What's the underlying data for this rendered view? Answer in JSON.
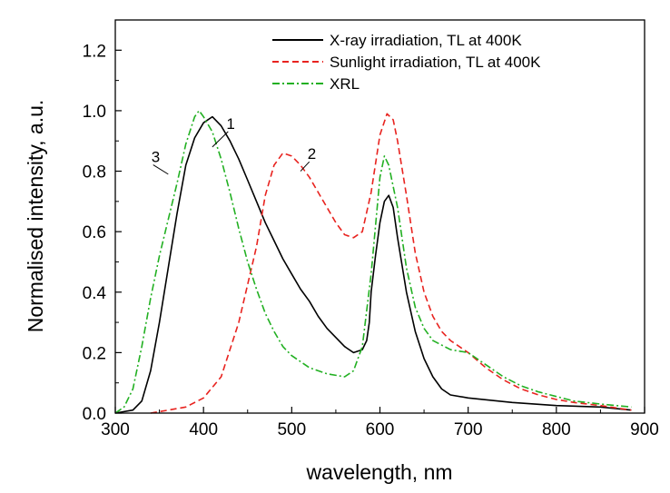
{
  "chart_data": {
    "type": "line",
    "title": "",
    "xlabel": "wavelength, nm",
    "ylabel": "Normalised intensity, a.u.",
    "xlim": [
      300,
      900
    ],
    "ylim": [
      0,
      1.3
    ],
    "x_ticks": [
      300,
      400,
      500,
      600,
      700,
      800,
      900
    ],
    "y_ticks": [
      0.0,
      0.2,
      0.4,
      0.6,
      0.8,
      1.0,
      1.2
    ],
    "x_tick_labels": [
      "300",
      "400",
      "500",
      "600",
      "700",
      "800",
      "900"
    ],
    "y_tick_labels": [
      "0.0",
      "0.2",
      "0.4",
      "0.6",
      "0.8",
      "1.0",
      "1.2"
    ],
    "grid": false,
    "legend_position": "top-right",
    "series": [
      {
        "name": "X-ray irradiation, TL at 400K",
        "color": "#000000",
        "style": "solid",
        "points": [
          [
            300,
            0.0
          ],
          [
            320,
            0.01
          ],
          [
            330,
            0.04
          ],
          [
            340,
            0.14
          ],
          [
            350,
            0.3
          ],
          [
            360,
            0.48
          ],
          [
            370,
            0.66
          ],
          [
            380,
            0.82
          ],
          [
            390,
            0.91
          ],
          [
            400,
            0.96
          ],
          [
            410,
            0.98
          ],
          [
            420,
            0.95
          ],
          [
            430,
            0.9
          ],
          [
            440,
            0.84
          ],
          [
            450,
            0.77
          ],
          [
            460,
            0.7
          ],
          [
            470,
            0.63
          ],
          [
            480,
            0.57
          ],
          [
            490,
            0.51
          ],
          [
            500,
            0.46
          ],
          [
            510,
            0.41
          ],
          [
            520,
            0.37
          ],
          [
            530,
            0.32
          ],
          [
            540,
            0.28
          ],
          [
            550,
            0.25
          ],
          [
            560,
            0.22
          ],
          [
            570,
            0.2
          ],
          [
            580,
            0.21
          ],
          [
            585,
            0.24
          ],
          [
            588,
            0.3
          ],
          [
            590,
            0.4
          ],
          [
            595,
            0.52
          ],
          [
            600,
            0.63
          ],
          [
            605,
            0.7
          ],
          [
            610,
            0.72
          ],
          [
            615,
            0.68
          ],
          [
            620,
            0.58
          ],
          [
            630,
            0.4
          ],
          [
            640,
            0.27
          ],
          [
            650,
            0.18
          ],
          [
            660,
            0.12
          ],
          [
            670,
            0.08
          ],
          [
            680,
            0.06
          ],
          [
            700,
            0.05
          ],
          [
            750,
            0.035
          ],
          [
            800,
            0.025
          ],
          [
            850,
            0.02
          ],
          [
            885,
            0.01
          ]
        ]
      },
      {
        "name": "Sunlight irradiation, TL at 400K",
        "color": "#e8231f",
        "style": "dashed",
        "points": [
          [
            340,
            0.0
          ],
          [
            360,
            0.01
          ],
          [
            380,
            0.02
          ],
          [
            400,
            0.05
          ],
          [
            420,
            0.12
          ],
          [
            440,
            0.3
          ],
          [
            460,
            0.55
          ],
          [
            470,
            0.72
          ],
          [
            480,
            0.82
          ],
          [
            490,
            0.86
          ],
          [
            500,
            0.85
          ],
          [
            510,
            0.82
          ],
          [
            520,
            0.78
          ],
          [
            530,
            0.73
          ],
          [
            540,
            0.68
          ],
          [
            550,
            0.63
          ],
          [
            560,
            0.59
          ],
          [
            570,
            0.58
          ],
          [
            580,
            0.6
          ],
          [
            590,
            0.73
          ],
          [
            600,
            0.92
          ],
          [
            608,
            0.99
          ],
          [
            615,
            0.97
          ],
          [
            620,
            0.9
          ],
          [
            630,
            0.72
          ],
          [
            640,
            0.53
          ],
          [
            650,
            0.4
          ],
          [
            660,
            0.32
          ],
          [
            670,
            0.27
          ],
          [
            680,
            0.24
          ],
          [
            690,
            0.22
          ],
          [
            700,
            0.2
          ],
          [
            720,
            0.15
          ],
          [
            740,
            0.11
          ],
          [
            760,
            0.08
          ],
          [
            780,
            0.06
          ],
          [
            800,
            0.045
          ],
          [
            820,
            0.035
          ],
          [
            850,
            0.025
          ],
          [
            885,
            0.01
          ]
        ]
      },
      {
        "name": "XRL",
        "color": "#22b022",
        "style": "dashdot",
        "points": [
          [
            300,
            0.0
          ],
          [
            310,
            0.02
          ],
          [
            320,
            0.08
          ],
          [
            330,
            0.22
          ],
          [
            340,
            0.38
          ],
          [
            350,
            0.52
          ],
          [
            360,
            0.64
          ],
          [
            370,
            0.76
          ],
          [
            380,
            0.89
          ],
          [
            390,
            0.98
          ],
          [
            395,
            1.0
          ],
          [
            400,
            0.98
          ],
          [
            410,
            0.93
          ],
          [
            420,
            0.84
          ],
          [
            430,
            0.73
          ],
          [
            440,
            0.61
          ],
          [
            450,
            0.5
          ],
          [
            460,
            0.41
          ],
          [
            470,
            0.33
          ],
          [
            480,
            0.27
          ],
          [
            490,
            0.22
          ],
          [
            500,
            0.19
          ],
          [
            520,
            0.15
          ],
          [
            540,
            0.13
          ],
          [
            560,
            0.12
          ],
          [
            570,
            0.14
          ],
          [
            580,
            0.22
          ],
          [
            590,
            0.46
          ],
          [
            600,
            0.78
          ],
          [
            605,
            0.85
          ],
          [
            610,
            0.82
          ],
          [
            620,
            0.68
          ],
          [
            630,
            0.48
          ],
          [
            640,
            0.35
          ],
          [
            650,
            0.28
          ],
          [
            660,
            0.24
          ],
          [
            680,
            0.21
          ],
          [
            700,
            0.2
          ],
          [
            720,
            0.16
          ],
          [
            740,
            0.12
          ],
          [
            760,
            0.09
          ],
          [
            780,
            0.07
          ],
          [
            800,
            0.055
          ],
          [
            820,
            0.04
          ],
          [
            850,
            0.03
          ],
          [
            885,
            0.02
          ]
        ]
      }
    ],
    "annotations": [
      {
        "label": "1",
        "text_x": 430,
        "text_y": 0.94,
        "target_x": 410,
        "target_y": 0.88
      },
      {
        "label": "2",
        "text_x": 522,
        "text_y": 0.84,
        "target_x": 510,
        "target_y": 0.8
      },
      {
        "label": "3",
        "text_x": 345,
        "text_y": 0.83,
        "target_x": 360,
        "target_y": 0.79
      }
    ]
  }
}
